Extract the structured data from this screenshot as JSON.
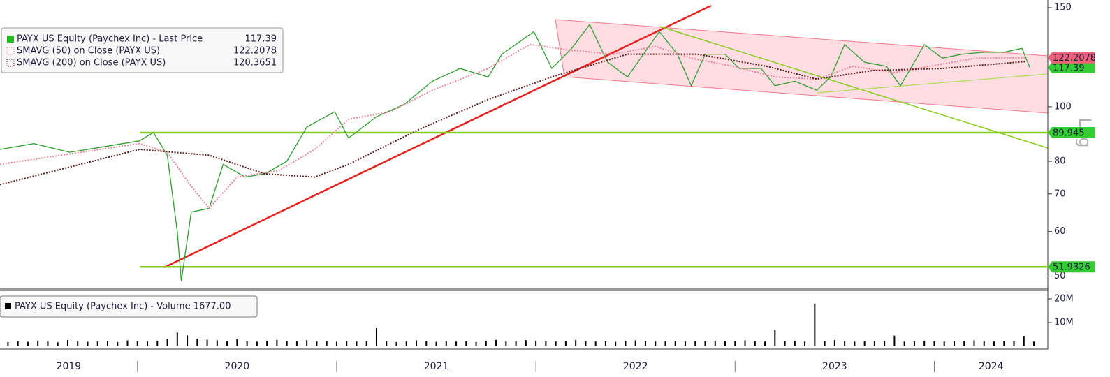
{
  "chart_data": [
    {
      "type": "line",
      "log_scale": true,
      "y_axis_label": "Log",
      "xlim": [
        2019.31,
        2024.57
      ],
      "ylim": [
        47.7,
        154.8
      ],
      "yticks": [
        50,
        60,
        70,
        80,
        100,
        150
      ],
      "series": [
        {
          "name": "PAYX US Equity (Paychex Inc) - Last Price",
          "color": "#2f9e2f",
          "style": "solid",
          "tag_color": "#33cc33",
          "x": [
            2019.31,
            2019.48,
            2019.66,
            2019.84,
            2020.01,
            2020.08,
            2020.15,
            2020.2,
            2020.22,
            2020.27,
            2020.36,
            2020.43,
            2020.54,
            2020.64,
            2020.75,
            2020.85,
            2020.99,
            2021.06,
            2021.2,
            2021.34,
            2021.48,
            2021.62,
            2021.76,
            2021.83,
            2021.99,
            2022.08,
            2022.18,
            2022.27,
            2022.36,
            2022.46,
            2022.62,
            2022.71,
            2022.78,
            2022.85,
            2022.95,
            2023.02,
            2023.13,
            2023.2,
            2023.3,
            2023.41,
            2023.48,
            2023.55,
            2023.65,
            2023.76,
            2023.83,
            2023.9,
            2023.95,
            2024.04,
            2024.14,
            2024.25,
            2024.35,
            2024.44,
            2024.48
          ],
          "values": [
            84,
            86,
            83,
            85,
            87,
            90,
            82,
            60,
            49,
            65,
            66,
            79,
            75,
            76,
            80,
            92,
            98,
            88,
            96,
            101,
            111,
            117,
            113,
            124,
            136,
            117,
            127,
            140,
            120,
            113,
            136,
            124,
            109,
            124,
            124,
            117,
            117,
            109,
            111,
            107,
            113,
            129,
            120,
            118,
            109,
            120,
            129,
            122,
            124,
            125,
            125,
            127,
            117.39
          ]
        },
        {
          "name": "SMAVG (50)  on Close (PAYX US)",
          "color": "#e8899a",
          "style": "dotted",
          "tag_color": "#f0607a",
          "x": [
            2019.31,
            2020.01,
            2020.15,
            2020.26,
            2020.36,
            2020.5,
            2020.71,
            2020.89,
            2021.06,
            2021.27,
            2021.48,
            2021.76,
            2021.97,
            2022.18,
            2022.39,
            2022.6,
            2022.78,
            2022.99,
            2023.2,
            2023.41,
            2023.59,
            2023.8,
            2023.97,
            2024.21,
            2024.46
          ],
          "values": [
            79,
            86,
            83,
            73,
            66,
            75,
            77,
            84,
            95,
            98,
            107,
            117,
            129,
            126,
            124,
            128,
            122,
            118,
            113,
            112,
            118,
            115,
            118,
            122,
            122.2078
          ]
        },
        {
          "name": "SMAVG (200)  on Close (PAYX US)",
          "color": "#5a1a1a",
          "style": "dotted",
          "x": [
            2019.31,
            2020.01,
            2020.36,
            2020.64,
            2020.89,
            2021.06,
            2021.41,
            2021.76,
            2022.08,
            2022.46,
            2022.81,
            2023.16,
            2023.41,
            2023.69,
            2024.04,
            2024.46
          ],
          "values": [
            72.7,
            84,
            82,
            76,
            75,
            79,
            91,
            103,
            113,
            124,
            124,
            118,
            112,
            116,
            117,
            120.3651
          ]
        }
      ],
      "levels": [
        89.945,
        51.9326
      ],
      "level_color": "#86cc1a",
      "level_tag_color": "#33cc33"
    },
    {
      "type": "bar",
      "color": "#000000",
      "series": [
        {
          "name": "PAYX US Equity (Paychex Inc) - Volume 1677.00",
          "color": "#000000",
          "x": [
            2019.35,
            2019.4,
            2019.45,
            2019.5,
            2019.55,
            2019.6,
            2019.65,
            2019.7,
            2019.75,
            2019.8,
            2019.85,
            2019.9,
            2019.95,
            2020,
            2020.05,
            2020.1,
            2020.15,
            2020.2,
            2020.25,
            2020.3,
            2020.35,
            2020.4,
            2020.45,
            2020.5,
            2020.55,
            2020.6,
            2020.65,
            2020.7,
            2020.75,
            2020.8,
            2020.85,
            2020.9,
            2020.95,
            2021,
            2021.05,
            2021.1,
            2021.15,
            2021.2,
            2021.25,
            2021.3,
            2021.35,
            2021.4,
            2021.45,
            2021.5,
            2021.55,
            2021.6,
            2021.65,
            2021.7,
            2021.75,
            2021.8,
            2021.85,
            2021.9,
            2021.95,
            2022,
            2022.05,
            2022.1,
            2022.15,
            2022.2,
            2022.25,
            2022.3,
            2022.35,
            2022.4,
            2022.45,
            2022.5,
            2022.55,
            2022.6,
            2022.65,
            2022.7,
            2022.75,
            2022.8,
            2022.85,
            2022.9,
            2022.95,
            2023,
            2023.05,
            2023.1,
            2023.15,
            2023.2,
            2023.25,
            2023.3,
            2023.35,
            2023.4,
            2023.45,
            2023.5,
            2023.55,
            2023.6,
            2023.65,
            2023.7,
            2023.75,
            2023.8,
            2023.85,
            2023.9,
            2023.95,
            2024,
            2024.05,
            2024.1,
            2024.15,
            2024.2,
            2024.25,
            2024.3,
            2024.35,
            2024.4,
            2024.45,
            2024.5
          ],
          "values": [
            1.8,
            2.1,
            1.9,
            2.4,
            2.0,
            1.7,
            2.6,
            2.2,
            1.9,
            2.0,
            2.3,
            1.8,
            2.5,
            2.2,
            2.0,
            2.4,
            3.1,
            5.8,
            4.6,
            3.2,
            2.8,
            2.5,
            2.2,
            3.0,
            2.1,
            2.0,
            2.4,
            2.7,
            2.3,
            2.1,
            2.6,
            2.0,
            2.2,
            1.9,
            2.3,
            2.0,
            2.1,
            7.6,
            2.2,
            1.8,
            2.0,
            2.5,
            2.1,
            1.9,
            2.3,
            2.0,
            2.2,
            1.8,
            2.4,
            2.7,
            2.0,
            2.1,
            2.6,
            2.4,
            2.2,
            2.0,
            2.3,
            2.6,
            2.1,
            2.0,
            2.2,
            1.9,
            2.4,
            2.5,
            2.1,
            2.0,
            2.2,
            2.3,
            2.0,
            2.1,
            2.2,
            2.4,
            2.2,
            2.3,
            2.5,
            2.1,
            2.0,
            6.9,
            2.2,
            2.4,
            2.0,
            18.0,
            2.2,
            2.6,
            2.3,
            2.0,
            2.1,
            2.3,
            2.2,
            4.5,
            2.0,
            2.1,
            2.4,
            2.2,
            2.0,
            2.3,
            2.1,
            2.5,
            2.2,
            2.0,
            2.3,
            2.1,
            4.4,
            2.0
          ]
        }
      ],
      "xlim": [
        2019.31,
        2024.57
      ],
      "ylim": [
        0,
        22.35
      ],
      "yticks": [
        {
          "value": 10,
          "label": "10M"
        },
        {
          "value": 20,
          "label": "20M"
        }
      ],
      "xticks": [
        {
          "value": 2019,
          "label": "2019"
        },
        {
          "value": 2020,
          "label": "2020"
        },
        {
          "value": 2021,
          "label": "2021"
        },
        {
          "value": 2022,
          "label": "2022"
        },
        {
          "value": 2023,
          "label": "2023"
        },
        {
          "value": 2024,
          "label": "2024"
        }
      ]
    }
  ]
}
